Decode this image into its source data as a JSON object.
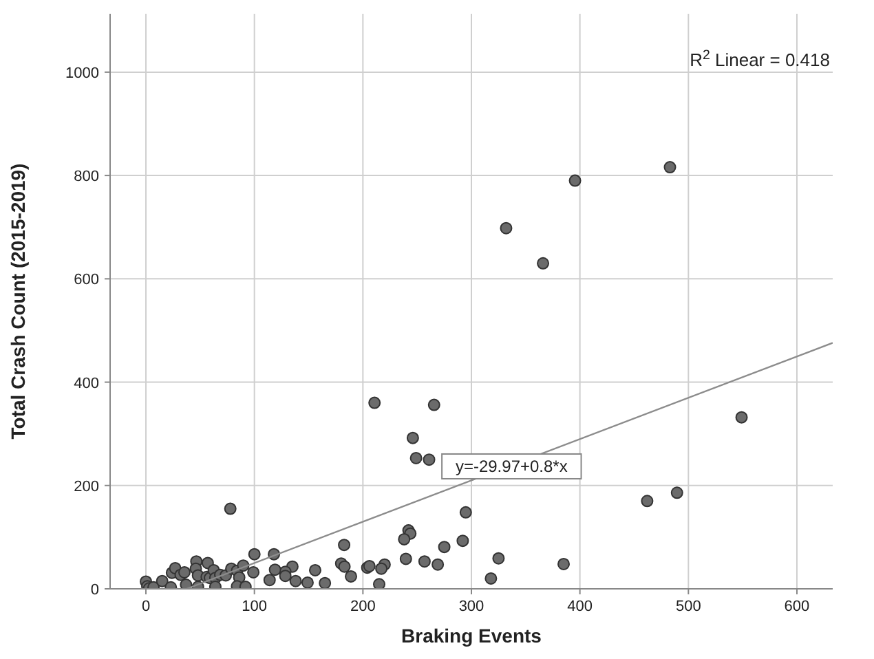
{
  "chart_data": {
    "type": "scatter",
    "xlabel": "Braking Events",
    "ylabel": "Total Crash Count (2015-2019)",
    "xlim": [
      -33,
      633
    ],
    "ylim": [
      0,
      1113
    ],
    "xticks": [
      0,
      100,
      200,
      300,
      400,
      500,
      600
    ],
    "yticks": [
      0,
      200,
      400,
      600,
      800,
      1000
    ],
    "grid": true,
    "marker": "circle",
    "annotations": [
      "R$^{2}$ Linear = 0.418",
      {
        "text": "y=-29.97+0.8*x",
        "x": 337,
        "y": 237
      }
    ],
    "series": [
      {
        "color": "#6b6b6b",
        "x": [
          483,
          395.5,
          332,
          366,
          265.6,
          549,
          489.5,
          462,
          385,
          210.7,
          246,
          249,
          261,
          294.8,
          242,
          243.7,
          238,
          292,
          275,
          182.7,
          239.6,
          256.8,
          269,
          325,
          318,
          180,
          183,
          189,
          204,
          206,
          220,
          217,
          215,
          156,
          165,
          149,
          138,
          135,
          128.5,
          128.5,
          77.8,
          100,
          118,
          0,
          1.3,
          3,
          7,
          15,
          23,
          24,
          27,
          32,
          35.5,
          37,
          46.5,
          46,
          48,
          48,
          57,
          56,
          59,
          62.5,
          64,
          64,
          68.5,
          73.6,
          78.7,
          84,
          86,
          89.7,
          84,
          91.8,
          99,
          114,
          119
        ],
        "values": [
          816,
          790,
          698,
          630,
          356,
          332,
          186,
          170,
          48,
          360,
          292,
          253,
          250,
          148,
          113,
          107,
          96,
          93,
          81,
          85,
          58,
          53,
          47,
          59,
          20,
          49,
          43,
          24,
          41,
          44,
          47,
          39,
          9,
          36,
          11,
          12,
          15,
          43,
          33,
          25,
          155,
          67,
          67,
          14,
          5,
          1,
          3,
          15,
          3,
          31,
          40,
          27,
          32,
          8,
          53,
          39,
          26,
          4,
          50,
          23,
          21,
          36,
          21,
          4,
          27,
          26,
          39,
          35,
          22,
          45,
          5,
          4,
          32,
          17,
          37
        ]
      },
      {
        "type": "line",
        "color": "#8c8c8c",
        "marker": "none",
        "x": [
          37.46,
          633
        ],
        "values": [
          0,
          476
        ]
      }
    ]
  }
}
